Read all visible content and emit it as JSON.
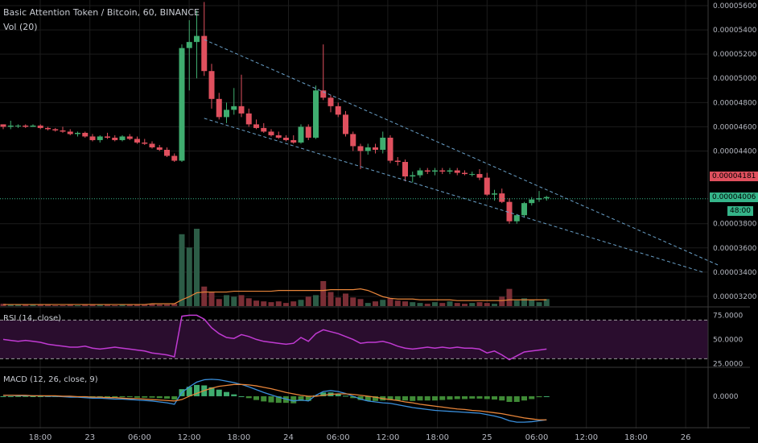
{
  "header": {
    "title": "Basic Attention Token / Bitcoin, 60, BINANCE",
    "vol_label": "Vol (20)"
  },
  "indicators": {
    "rsi_label": "RSI (14, close)",
    "macd_label": "MACD (12, 26, close, 9)"
  },
  "colors": {
    "background": "#000000",
    "grid": "#1c1c1c",
    "up": "#3fad6f",
    "down": "#e0505e",
    "up_volume": "#2c5c46",
    "down_volume": "#7a2e35",
    "trendline": "#6aa0c8",
    "volume_ma": "#e8853a",
    "rsi_line": "#c03ad2",
    "rsi_band": "#2a0d2e",
    "macd_line": "#3a8fdc",
    "signal_line": "#e8853a",
    "current_price": "#35b58a"
  },
  "price_axis": {
    "ticks": [
      "0.00005600",
      "0.00005400",
      "0.00005200",
      "0.00005000",
      "0.00004800",
      "0.00004600",
      "0.00004400",
      "0.00004181",
      "0.00004006",
      "0.00003800",
      "0.00003600",
      "0.00003400",
      "0.00003200"
    ],
    "last_price_label": "0.00004181",
    "current_price_label": "0.00004006",
    "countdown_label": "48:00"
  },
  "rsi_axis": {
    "ticks": [
      "75.0000",
      "50.0000",
      "25.0000"
    ]
  },
  "macd_axis": {
    "ticks": [
      "0.0000"
    ]
  },
  "time_axis": {
    "labels": [
      "18:00",
      "23",
      "06:00",
      "12:00",
      "18:00",
      "24",
      "06:00",
      "12:00",
      "18:00",
      "25",
      "06:00",
      "12:00",
      "18:00",
      "26"
    ]
  },
  "chart_data": [
    {
      "type": "candlestick",
      "title": "Basic Attention Token / Bitcoin, 60, BINANCE",
      "ylim": [
        3.12e-05,
        5.62e-05
      ],
      "candles": [
        [
          4.62e-05,
          4.62e-05,
          4.58e-05,
          4.6e-05
        ],
        [
          4.6e-05,
          4.65e-05,
          4.58e-05,
          4.61e-05
        ],
        [
          4.61e-05,
          4.62e-05,
          4.59e-05,
          4.61e-05
        ],
        [
          4.61e-05,
          4.62e-05,
          4.59e-05,
          4.6e-05
        ],
        [
          4.6e-05,
          4.62e-05,
          4.6e-05,
          4.61e-05
        ],
        [
          4.61e-05,
          4.62e-05,
          4.58e-05,
          4.59e-05
        ],
        [
          4.59e-05,
          4.6e-05,
          4.57e-05,
          4.58e-05
        ],
        [
          4.58e-05,
          4.59e-05,
          4.56e-05,
          4.57e-05
        ],
        [
          4.57e-05,
          4.6e-05,
          4.55e-05,
          4.56e-05
        ],
        [
          4.56e-05,
          4.58e-05,
          4.53e-05,
          4.54e-05
        ],
        [
          4.54e-05,
          4.56e-05,
          4.52e-05,
          4.55e-05
        ],
        [
          4.55e-05,
          4.56e-05,
          4.51e-05,
          4.52e-05
        ],
        [
          4.52e-05,
          4.54e-05,
          4.48e-05,
          4.49e-05
        ],
        [
          4.49e-05,
          4.53e-05,
          4.47e-05,
          4.52e-05
        ],
        [
          4.52e-05,
          4.55e-05,
          4.5e-05,
          4.51e-05
        ],
        [
          4.51e-05,
          4.53e-05,
          4.48e-05,
          4.49e-05
        ],
        [
          4.49e-05,
          4.53e-05,
          4.48e-05,
          4.52e-05
        ],
        [
          4.52e-05,
          4.54e-05,
          4.49e-05,
          4.5e-05
        ],
        [
          4.5e-05,
          4.52e-05,
          4.46e-05,
          4.47e-05
        ],
        [
          4.47e-05,
          4.5e-05,
          4.45e-05,
          4.46e-05
        ],
        [
          4.46e-05,
          4.48e-05,
          4.42e-05,
          4.43e-05
        ],
        [
          4.43e-05,
          4.45e-05,
          4.4e-05,
          4.41e-05
        ],
        [
          4.41e-05,
          4.43e-05,
          4.35e-05,
          4.36e-05
        ],
        [
          4.36e-05,
          4.38e-05,
          4.31e-05,
          4.32e-05
        ],
        [
          4.32e-05,
          5.28e-05,
          4.31e-05,
          5.25e-05
        ],
        [
          5.25e-05,
          5.48e-05,
          4.9e-05,
          5.3e-05
        ],
        [
          5.3e-05,
          5.56e-05,
          5e-05,
          5.35e-05
        ],
        [
          5.35e-05,
          5.63e-05,
          5.02e-05,
          5.06e-05
        ],
        [
          5.06e-05,
          5.12e-05,
          4.75e-05,
          4.83e-05
        ],
        [
          4.83e-05,
          4.88e-05,
          4.66e-05,
          4.68e-05
        ],
        [
          4.68e-05,
          4.8e-05,
          4.63e-05,
          4.74e-05
        ],
        [
          4.74e-05,
          4.92e-05,
          4.7e-05,
          4.77e-05
        ],
        [
          4.77e-05,
          5.03e-05,
          4.68e-05,
          4.71e-05
        ],
        [
          4.71e-05,
          4.75e-05,
          4.6e-05,
          4.62e-05
        ],
        [
          4.62e-05,
          4.66e-05,
          4.58e-05,
          4.59e-05
        ],
        [
          4.59e-05,
          4.63e-05,
          4.55e-05,
          4.56e-05
        ],
        [
          4.56e-05,
          4.58e-05,
          4.52e-05,
          4.53e-05
        ],
        [
          4.53e-05,
          4.56e-05,
          4.5e-05,
          4.51e-05
        ],
        [
          4.51e-05,
          4.53e-05,
          4.48e-05,
          4.49e-05
        ],
        [
          4.49e-05,
          4.53e-05,
          4.46e-05,
          4.47e-05
        ],
        [
          4.47e-05,
          4.62e-05,
          4.46e-05,
          4.6e-05
        ],
        [
          4.6e-05,
          4.62e-05,
          4.49e-05,
          4.51e-05
        ],
        [
          4.51e-05,
          4.94e-05,
          4.5e-05,
          4.9e-05
        ],
        [
          4.9e-05,
          5.28e-05,
          4.82e-05,
          4.84e-05
        ],
        [
          4.84e-05,
          4.86e-05,
          4.72e-05,
          4.77e-05
        ],
        [
          4.77e-05,
          4.8e-05,
          4.68e-05,
          4.7e-05
        ],
        [
          4.7e-05,
          4.73e-05,
          4.52e-05,
          4.54e-05
        ],
        [
          4.54e-05,
          4.56e-05,
          4.4e-05,
          4.44e-05
        ],
        [
          4.44e-05,
          4.46e-05,
          4.25e-05,
          4.4e-05
        ],
        [
          4.4e-05,
          4.46e-05,
          4.37e-05,
          4.43e-05
        ],
        [
          4.43e-05,
          4.46e-05,
          4.38e-05,
          4.41e-05
        ],
        [
          4.41e-05,
          4.56e-05,
          4.38e-05,
          4.51e-05
        ],
        [
          4.51e-05,
          4.53e-05,
          4.3e-05,
          4.32e-05
        ],
        [
          4.32e-05,
          4.35e-05,
          4.28e-05,
          4.31e-05
        ],
        [
          4.31e-05,
          4.33e-05,
          4.15e-05,
          4.19e-05
        ],
        [
          4.19e-05,
          4.23e-05,
          4.14e-05,
          4.2e-05
        ],
        [
          4.2e-05,
          4.26e-05,
          4.18e-05,
          4.24e-05
        ],
        [
          4.24e-05,
          4.26e-05,
          4.21e-05,
          4.23e-05
        ],
        [
          4.23e-05,
          4.26e-05,
          4.2e-05,
          4.24e-05
        ],
        [
          4.24e-05,
          4.26e-05,
          4.21e-05,
          4.23e-05
        ],
        [
          4.23e-05,
          4.26e-05,
          4.21e-05,
          4.24e-05
        ],
        [
          4.24e-05,
          4.26e-05,
          4.2e-05,
          4.22e-05
        ],
        [
          4.22e-05,
          4.24e-05,
          4.2e-05,
          4.21e-05
        ],
        [
          4.21e-05,
          4.23e-05,
          4.19e-05,
          4.21e-05
        ],
        [
          4.21e-05,
          4.25e-05,
          4.16e-05,
          4.18e-05
        ],
        [
          4.18e-05,
          4.22e-05,
          4.03e-05,
          4.04e-05
        ],
        [
          4.04e-05,
          4.08e-05,
          3.99e-05,
          4.05e-05
        ],
        [
          4.05e-05,
          4.09e-05,
          3.97e-05,
          3.98e-05
        ],
        [
          3.98e-05,
          4.01e-05,
          3.8e-05,
          3.82e-05
        ],
        [
          3.82e-05,
          3.88e-05,
          3.8e-05,
          3.87e-05
        ],
        [
          3.87e-05,
          3.98e-05,
          3.85e-05,
          3.97e-05
        ],
        [
          3.97e-05,
          4.02e-05,
          3.95e-05,
          4e-05
        ],
        [
          4e-05,
          4.07e-05,
          3.98e-05,
          4.01e-05
        ],
        [
          4.01e-05,
          4.03e-05,
          3.99e-05,
          4.02e-05
        ]
      ],
      "volume": [
        3,
        2,
        2,
        2,
        2,
        2,
        2,
        1,
        1,
        2,
        1,
        2,
        2,
        2,
        2,
        1,
        2,
        2,
        2,
        2,
        3,
        2,
        2,
        3,
        92,
        75,
        99,
        25,
        18,
        9,
        14,
        12,
        14,
        10,
        7,
        6,
        5,
        6,
        4,
        6,
        8,
        12,
        14,
        32,
        18,
        11,
        16,
        11,
        9,
        4,
        6,
        8,
        10,
        7,
        6,
        5,
        4,
        3,
        5,
        4,
        6,
        4,
        3,
        4,
        5,
        4,
        3,
        12,
        22,
        7,
        10,
        8,
        5,
        9
      ],
      "volume_ma": [
        2,
        2,
        2,
        2,
        2,
        2,
        2,
        2,
        2,
        2,
        2,
        2,
        2,
        2,
        2,
        2,
        2,
        2,
        2,
        2,
        3,
        3,
        3,
        3,
        8,
        12,
        17,
        18,
        18,
        18,
        18,
        19,
        19,
        19,
        19,
        19,
        19,
        20,
        20,
        20,
        20,
        20,
        20,
        20,
        21,
        21,
        21,
        21,
        22,
        20,
        16,
        12,
        10,
        9,
        9,
        9,
        8,
        8,
        8,
        8,
        8,
        7,
        7,
        7,
        7,
        7,
        7,
        7,
        8,
        8,
        8,
        8,
        8,
        8
      ],
      "trendlines": [
        {
          "from": [
            27,
            5.32e-05
          ],
          "to": [
            96,
            3.46e-05
          ]
        },
        {
          "from": [
            27,
            4.67e-05
          ],
          "to": [
            94,
            3.4e-05
          ]
        }
      ],
      "last_price": 4.18e-05,
      "current_price": 4.006e-05
    },
    {
      "type": "line",
      "title": "RSI (14, close)",
      "ylim": [
        22,
        82
      ],
      "bands": [
        30,
        70
      ],
      "values": [
        50,
        49,
        48,
        49,
        48,
        47,
        45,
        44,
        43,
        42,
        42,
        43,
        41,
        40,
        41,
        42,
        41,
        40,
        39,
        38,
        36,
        35,
        34,
        32,
        74,
        75,
        75,
        71,
        62,
        56,
        52,
        51,
        55,
        53,
        50,
        48,
        47,
        46,
        45,
        46,
        52,
        48,
        56,
        60,
        58,
        56,
        53,
        50,
        46,
        47,
        47,
        48,
        46,
        43,
        41,
        40,
        41,
        42,
        41,
        42,
        41,
        42,
        41,
        41,
        40,
        36,
        38,
        34,
        29,
        33,
        37,
        38,
        39,
        40
      ]
    },
    {
      "type": "line",
      "title": "MACD (12, 26, close, 9)",
      "ylim": [
        -6.5e-07,
        5.8e-07
      ],
      "series": [
        {
          "name": "MACD",
          "values": [
            2e-08,
            2e-08,
            1e-08,
            1e-08,
            1e-08,
            1e-08,
            0,
            0,
            -1e-08,
            -2e-08,
            -2e-08,
            -3e-08,
            -4e-08,
            -4e-08,
            -5e-08,
            -6e-08,
            -6e-08,
            -7e-08,
            -8e-08,
            -9e-08,
            -1e-07,
            -1.2e-07,
            -1.4e-07,
            -1.7e-07,
            8e-08,
            2e-07,
            3e-07,
            3.5e-07,
            3.6e-07,
            3.5e-07,
            3.2e-07,
            2.9e-07,
            2.5e-07,
            2e-07,
            1.4e-07,
            8e-08,
            3e-08,
            -2e-08,
            -6e-08,
            -1e-07,
            -8e-08,
            -1e-07,
            2e-08,
            1e-07,
            1.2e-07,
            1e-07,
            6e-08,
            0,
            -6e-08,
            -1e-07,
            -1.2e-07,
            -1.4e-07,
            -1.5e-07,
            -1.8e-07,
            -2.1e-07,
            -2.4e-07,
            -2.6e-07,
            -2.8e-07,
            -3e-07,
            -3.1e-07,
            -3.2e-07,
            -3.3e-07,
            -3.4e-07,
            -3.5e-07,
            -3.6e-07,
            -3.9e-07,
            -4.2e-07,
            -4.6e-07,
            -5.2e-07,
            -5.5e-07,
            -5.5e-07,
            -5.4e-07,
            -5.2e-07,
            -5e-07
          ]
        },
        {
          "name": "Signal",
          "values": [
            2e-08,
            2e-08,
            2e-08,
            2e-08,
            1e-08,
            1e-08,
            1e-08,
            1e-08,
            0,
            0,
            -1e-08,
            -1e-08,
            -2e-08,
            -2e-08,
            -3e-08,
            -3e-08,
            -4e-08,
            -5e-08,
            -5e-08,
            -6e-08,
            -7e-08,
            -8e-08,
            -9e-08,
            -1e-07,
            -7e-08,
            0,
            6e-08,
            1.2e-07,
            1.7e-07,
            2.1e-07,
            2.3e-07,
            2.5e-07,
            2.5e-07,
            2.4e-07,
            2.2e-07,
            1.9e-07,
            1.6e-07,
            1.2e-07,
            8e-08,
            5e-08,
            2e-08,
            0,
            0,
            2e-08,
            4e-08,
            5e-08,
            5e-08,
            4e-08,
            2e-08,
            0,
            -2e-08,
            -5e-08,
            -7e-08,
            -9e-08,
            -1.2e-07,
            -1.4e-07,
            -1.7e-07,
            -1.9e-07,
            -2.1e-07,
            -2.3e-07,
            -2.5e-07,
            -2.7e-07,
            -2.8e-07,
            -3e-07,
            -3.1e-07,
            -3.3e-07,
            -3.5e-07,
            -3.7e-07,
            -4e-07,
            -4.3e-07,
            -4.6e-07,
            -4.8e-07,
            -5e-07,
            -5e-07
          ]
        }
      ],
      "histogram": [
        0,
        0,
        -1e-08,
        -1e-08,
        0,
        0,
        -1e-08,
        -1e-08,
        -1e-08,
        -2e-08,
        -1e-08,
        -2e-08,
        -2e-08,
        -2e-08,
        -2e-08,
        -3e-08,
        -2e-08,
        -2e-08,
        -3e-08,
        -3e-08,
        -3e-08,
        -4e-08,
        -5e-08,
        -7e-08,
        1.5e-07,
        2e-07,
        2.4e-07,
        2.3e-07,
        1.9e-07,
        1.4e-07,
        9e-08,
        4e-08,
        0,
        -4e-08,
        -8e-08,
        -1.1e-07,
        -1.3e-07,
        -1.4e-07,
        -1.4e-07,
        -1.5e-07,
        -1e-07,
        -1e-07,
        2e-08,
        8e-08,
        8e-08,
        5e-08,
        1e-08,
        -4e-08,
        -8e-08,
        -1e-07,
        -1e-07,
        -9e-08,
        -8e-08,
        -9e-08,
        -9e-08,
        -1e-07,
        -9e-08,
        -9e-08,
        -9e-08,
        -8e-08,
        -7e-08,
        -6e-08,
        -6e-08,
        -5e-08,
        -5e-08,
        -6e-08,
        -7e-08,
        -9e-08,
        -1.2e-07,
        -1.2e-07,
        -9e-08,
        -6e-08,
        -2e-08,
        0
      ]
    }
  ]
}
